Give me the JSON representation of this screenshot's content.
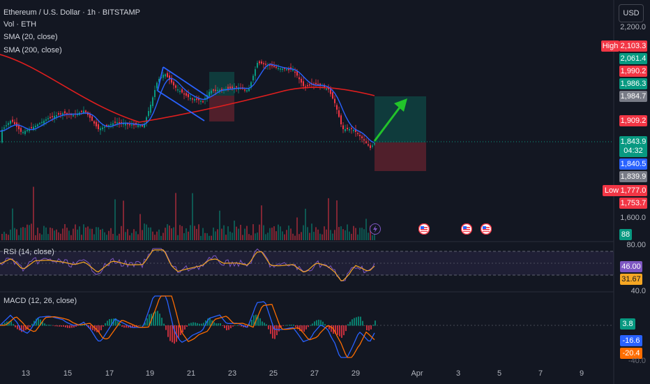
{
  "legend": {
    "title": "Ethereum / U.S. Dollar · 1h · BITSTAMP",
    "vol": "Vol · ETH",
    "sma20": "SMA (20, close)",
    "sma200": "SMA (200, close)",
    "rsi": "RSI (14, close)",
    "macd": "MACD (12, 26, close)"
  },
  "currency_button": "USD",
  "price_scale": {
    "top": "2,200.0",
    "bottom": "1,600.0"
  },
  "price_tags": {
    "high_label": "High",
    "high": "2,103.3",
    "p2061": "2,061.4",
    "p1990": "1,990.2",
    "p1986": "1,986.3",
    "p1984": "1,984.7",
    "p1909": "1,909.2",
    "last": "1,843.9",
    "countdown": "04:32",
    "sma20": "1,840.5",
    "p1839": "1,839.9",
    "low_label": "Low",
    "low": "1,777.0",
    "p1753": "1,753.7",
    "volume": "88"
  },
  "rsi_scale": {
    "top": "80.00",
    "value": "46.00",
    "ma": "31.67",
    "bottom": "40.0"
  },
  "macd_scale": {
    "hist": "3.8",
    "macd": "-16.6",
    "signal": "-20.4",
    "bottom": "-40.0"
  },
  "x_axis": [
    "13",
    "15",
    "17",
    "19",
    "21",
    "23",
    "25",
    "27",
    "29",
    "Apr",
    "3",
    "5",
    "7",
    "9"
  ],
  "events": [
    {
      "icon": "lightning-icon"
    },
    {
      "icon": "us-flag-icon"
    },
    {
      "icon": "us-flag-icon"
    },
    {
      "icon": "us-flag-icon"
    }
  ],
  "colors": {
    "background": "#131722",
    "up": "#089981",
    "down": "#f23645",
    "sma20": "#2962ff",
    "sma200": "#e01e1e",
    "rsi": "#7e57c2",
    "rsi_ma": "#f5a623",
    "macd": "#2962ff",
    "signal": "#ff6d00",
    "drawing_channel": "#2962ff",
    "arrow": "#22c32a"
  }
}
